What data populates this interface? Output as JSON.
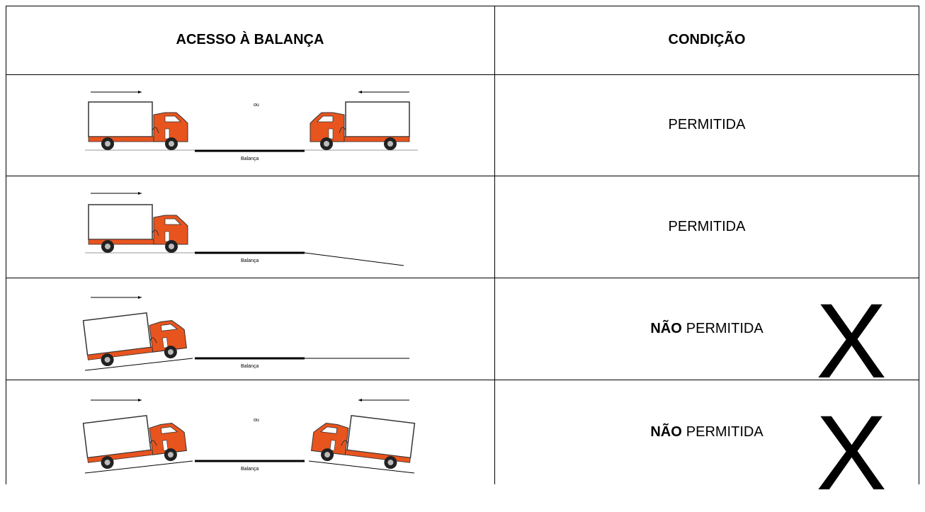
{
  "table": {
    "header": [
      "ACESSO À BALANÇA",
      "CONDIÇÃO"
    ],
    "rows": [
      {
        "scene": {
          "or": "ou",
          "scale": "Balança"
        },
        "condition": {
          "text": "PERMITIDA"
        }
      },
      {
        "scene": {
          "scale": "Balança"
        },
        "condition": {
          "text": "PERMITIDA"
        }
      },
      {
        "scene": {
          "scale": "Balança"
        },
        "condition": {
          "emphasis": "NÃO",
          "text": "PERMITIDA",
          "mark": "X"
        }
      },
      {
        "scene": {
          "or": "ou",
          "scale": "Balança"
        },
        "condition": {
          "emphasis": "NÃO",
          "text": "PERMITIDA",
          "mark": "X"
        }
      }
    ]
  }
}
